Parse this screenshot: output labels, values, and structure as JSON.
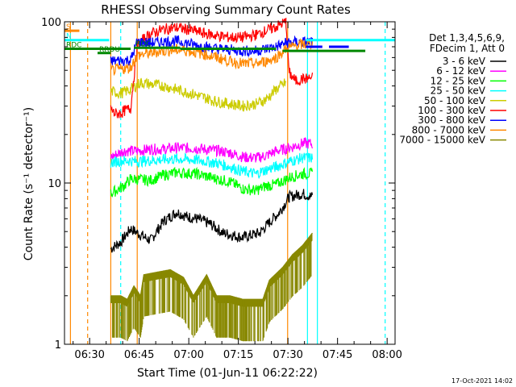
{
  "chart_data": {
    "type": "line",
    "title": "RHESSI Observing Summary Count Rates",
    "xlabel": "Start Time (01-Jun-11 06:22:22)",
    "ylabel": "Count Rate (s⁻¹ detector⁻¹)",
    "yscale": "log",
    "ylim": [
      1,
      100
    ],
    "xlim_minutes": [
      0,
      100
    ],
    "x_ticks": [
      {
        "t": 7.6,
        "label": "06:30"
      },
      {
        "t": 22.6,
        "label": "06:45"
      },
      {
        "t": 37.6,
        "label": "07:00"
      },
      {
        "t": 52.6,
        "label": "07:15"
      },
      {
        "t": 67.6,
        "label": "07:30"
      },
      {
        "t": 82.6,
        "label": "07:45"
      },
      {
        "t": 97.6,
        "label": "08:00"
      }
    ],
    "y_ticks": [
      {
        "v": 1,
        "label": "1"
      },
      {
        "v": 10,
        "label": "10"
      },
      {
        "v": 100,
        "label": "100"
      }
    ],
    "legend_header": [
      "Det 1,3,4,5,6,9,",
      "FDecim 1, Att 0"
    ],
    "legend_position": "right",
    "series": [
      {
        "name": "3 - 6 keV",
        "color": "#000000",
        "points": [
          [
            14,
            3.9
          ],
          [
            17,
            4.3
          ],
          [
            20,
            5.2
          ],
          [
            26,
            4.4
          ],
          [
            30,
            5.8
          ],
          [
            34,
            6.6
          ],
          [
            37,
            6.2
          ],
          [
            40,
            6.0
          ],
          [
            44,
            5.6
          ],
          [
            48,
            4.9
          ],
          [
            54,
            4.6
          ],
          [
            59,
            4.9
          ],
          [
            62,
            5.7
          ],
          [
            65,
            6.6
          ],
          [
            68,
            8.2
          ],
          [
            72,
            8.6
          ],
          [
            75,
            8.2
          ]
        ]
      },
      {
        "name": "6 - 12 keV",
        "color": "#ff00ff",
        "points": [
          [
            14,
            14.5
          ],
          [
            18,
            15.8
          ],
          [
            22,
            15.8
          ],
          [
            26,
            16.2
          ],
          [
            30,
            16.2
          ],
          [
            34,
            16.5
          ],
          [
            40,
            16.4
          ],
          [
            46,
            15.9
          ],
          [
            50,
            15.4
          ],
          [
            54,
            14.5
          ],
          [
            58,
            14.3
          ],
          [
            61,
            14.8
          ],
          [
            64,
            15.8
          ],
          [
            68,
            16.5
          ],
          [
            72,
            17.6
          ],
          [
            75,
            17.5
          ]
        ]
      },
      {
        "name": "12 - 25 keV",
        "color": "#00ff00",
        "points": [
          [
            14,
            8.6
          ],
          [
            18,
            9.6
          ],
          [
            20,
            10.6
          ],
          [
            26,
            10.4
          ],
          [
            30,
            11.2
          ],
          [
            34,
            11.6
          ],
          [
            40,
            11.4
          ],
          [
            46,
            10.6
          ],
          [
            50,
            10.2
          ],
          [
            54,
            9.2
          ],
          [
            58,
            9.0
          ],
          [
            61,
            9.6
          ],
          [
            64,
            9.8
          ],
          [
            68,
            10.8
          ],
          [
            72,
            11.4
          ],
          [
            75,
            11.4
          ]
        ]
      },
      {
        "name": "25 - 50 keV",
        "color": "#00ffff",
        "points": [
          [
            14,
            13.4
          ],
          [
            18,
            13.8
          ],
          [
            22,
            13.6
          ],
          [
            26,
            13.8
          ],
          [
            30,
            14.0
          ],
          [
            34,
            14.1
          ],
          [
            40,
            13.9
          ],
          [
            46,
            13.3
          ],
          [
            50,
            12.6
          ],
          [
            54,
            11.8
          ],
          [
            58,
            11.4
          ],
          [
            61,
            12.1
          ],
          [
            64,
            12.6
          ],
          [
            68,
            13.6
          ],
          [
            72,
            14.3
          ],
          [
            75,
            14.3
          ]
        ]
      },
      {
        "name": "50 - 100 keV",
        "color": "#cccc00",
        "points": [
          [
            14,
            37
          ],
          [
            17,
            36
          ],
          [
            20,
            38
          ],
          [
            23,
            42
          ],
          [
            26,
            41
          ],
          [
            30,
            40
          ],
          [
            34,
            38
          ],
          [
            38,
            36
          ],
          [
            42,
            34
          ],
          [
            46,
            32
          ],
          [
            50,
            31
          ],
          [
            54,
            30
          ],
          [
            58,
            31
          ],
          [
            61,
            33
          ],
          [
            64,
            38
          ],
          [
            67,
            42
          ]
        ]
      },
      {
        "name": "100 - 300 keV",
        "color": "#ff0000",
        "points": [
          [
            14,
            29
          ],
          [
            15,
            27
          ],
          [
            17,
            27
          ],
          [
            18,
            28
          ],
          [
            20,
            29
          ],
          [
            22,
            72
          ],
          [
            26,
            84
          ],
          [
            30,
            90
          ],
          [
            34,
            92
          ],
          [
            38,
            89
          ],
          [
            42,
            85
          ],
          [
            46,
            82
          ],
          [
            50,
            80
          ],
          [
            54,
            80
          ],
          [
            58,
            83
          ],
          [
            61,
            88
          ],
          [
            64,
            93
          ],
          [
            67,
            100
          ],
          [
            68,
            48
          ],
          [
            70,
            43
          ],
          [
            72,
            44
          ],
          [
            75,
            45
          ]
        ]
      },
      {
        "name": "300 - 800 keV",
        "color": "#0000ff",
        "points": [
          [
            14,
            57
          ],
          [
            20,
            58
          ],
          [
            22,
            75
          ],
          [
            26,
            74
          ],
          [
            30,
            75
          ],
          [
            34,
            76
          ],
          [
            38,
            73
          ],
          [
            42,
            70
          ],
          [
            46,
            68
          ],
          [
            50,
            67
          ],
          [
            54,
            66
          ],
          [
            58,
            66
          ],
          [
            61,
            68
          ],
          [
            64,
            70
          ],
          [
            67,
            74
          ],
          [
            71,
            75
          ],
          [
            75,
            75
          ]
        ]
      },
      {
        "name": "800 - 7000 keV",
        "color": "#ff8800",
        "points": [
          [
            14,
            50
          ],
          [
            18,
            51
          ],
          [
            20,
            52
          ],
          [
            22,
            62
          ],
          [
            26,
            64
          ],
          [
            30,
            66
          ],
          [
            34,
            67
          ],
          [
            38,
            66
          ],
          [
            42,
            63
          ],
          [
            46,
            60
          ],
          [
            50,
            57
          ],
          [
            54,
            55
          ],
          [
            58,
            55
          ],
          [
            61,
            57
          ],
          [
            64,
            60
          ],
          [
            67,
            68
          ],
          [
            71,
            72
          ],
          [
            75,
            73
          ]
        ]
      },
      {
        "name": "7000 - 15000 keV",
        "color": "#888800",
        "points": [
          [
            14,
            2.0
          ],
          [
            17,
            2.0
          ],
          [
            19,
            1.9
          ],
          [
            21,
            2.3
          ],
          [
            23,
            2.0
          ],
          [
            24,
            2.7
          ],
          [
            28,
            2.8
          ],
          [
            32,
            2.9
          ],
          [
            36,
            2.6
          ],
          [
            39,
            2.0
          ],
          [
            43,
            2.7
          ],
          [
            46,
            2.0
          ],
          [
            50,
            2.0
          ],
          [
            54,
            1.9
          ],
          [
            57,
            1.9
          ],
          [
            60,
            1.9
          ],
          [
            62,
            2.5
          ],
          [
            66,
            3.0
          ],
          [
            69,
            3.6
          ],
          [
            72,
            4.1
          ],
          [
            75,
            4.9
          ]
        ]
      }
    ],
    "flag_bars": [
      {
        "label": "S",
        "color": "#ff8800",
        "t0": 0,
        "t1": 4.5,
        "v": 88
      },
      {
        "label": "N",
        "color": "#00ffff",
        "t0": 0,
        "t1": 13.5,
        "v": 77
      },
      {
        "label": "",
        "color": "#00ffff",
        "t0": 73,
        "t1": 100,
        "v": 77
      },
      {
        "label": "RDC",
        "color": "#008800",
        "t0": 21,
        "t1": 35,
        "v": 69
      },
      {
        "label": "RDC",
        "color": "#008800",
        "t0": 0,
        "t1": 20,
        "v": 68
      },
      {
        "label": "",
        "color": "#008800",
        "t0": 35,
        "t1": 64,
        "v": 68
      },
      {
        "label": "",
        "color": "#008800",
        "t0": 66,
        "t1": 91,
        "v": 66
      },
      {
        "label": "RRDU",
        "color": "#008800",
        "t0": 10,
        "t1": 14,
        "v": 64
      },
      {
        "label": "",
        "color": "#0000ff",
        "t0": 73,
        "t1": 78,
        "v": 70
      },
      {
        "label": "",
        "color": "#0000ff",
        "t0": 80,
        "t1": 86,
        "v": 70
      }
    ],
    "vertical_lines": [
      {
        "t": 1.8,
        "color": "#ff8800",
        "dash": false
      },
      {
        "t": 7.0,
        "color": "#ff8800",
        "dash": true
      },
      {
        "t": 14.0,
        "color": "#ff8800",
        "dash": false
      },
      {
        "t": 17.0,
        "color": "#00ffff",
        "dash": true
      },
      {
        "t": 22.0,
        "color": "#ff8800",
        "dash": false
      },
      {
        "t": 67.5,
        "color": "#ff8800",
        "dash": false
      },
      {
        "t": 73.5,
        "color": "#00ffff",
        "dash": false
      },
      {
        "t": 76.5,
        "color": "#00ffff",
        "dash": false
      },
      {
        "t": 97.0,
        "color": "#00ffff",
        "dash": true
      }
    ],
    "grid": false
  },
  "footer_date": "17-Oct-2021 14:02"
}
